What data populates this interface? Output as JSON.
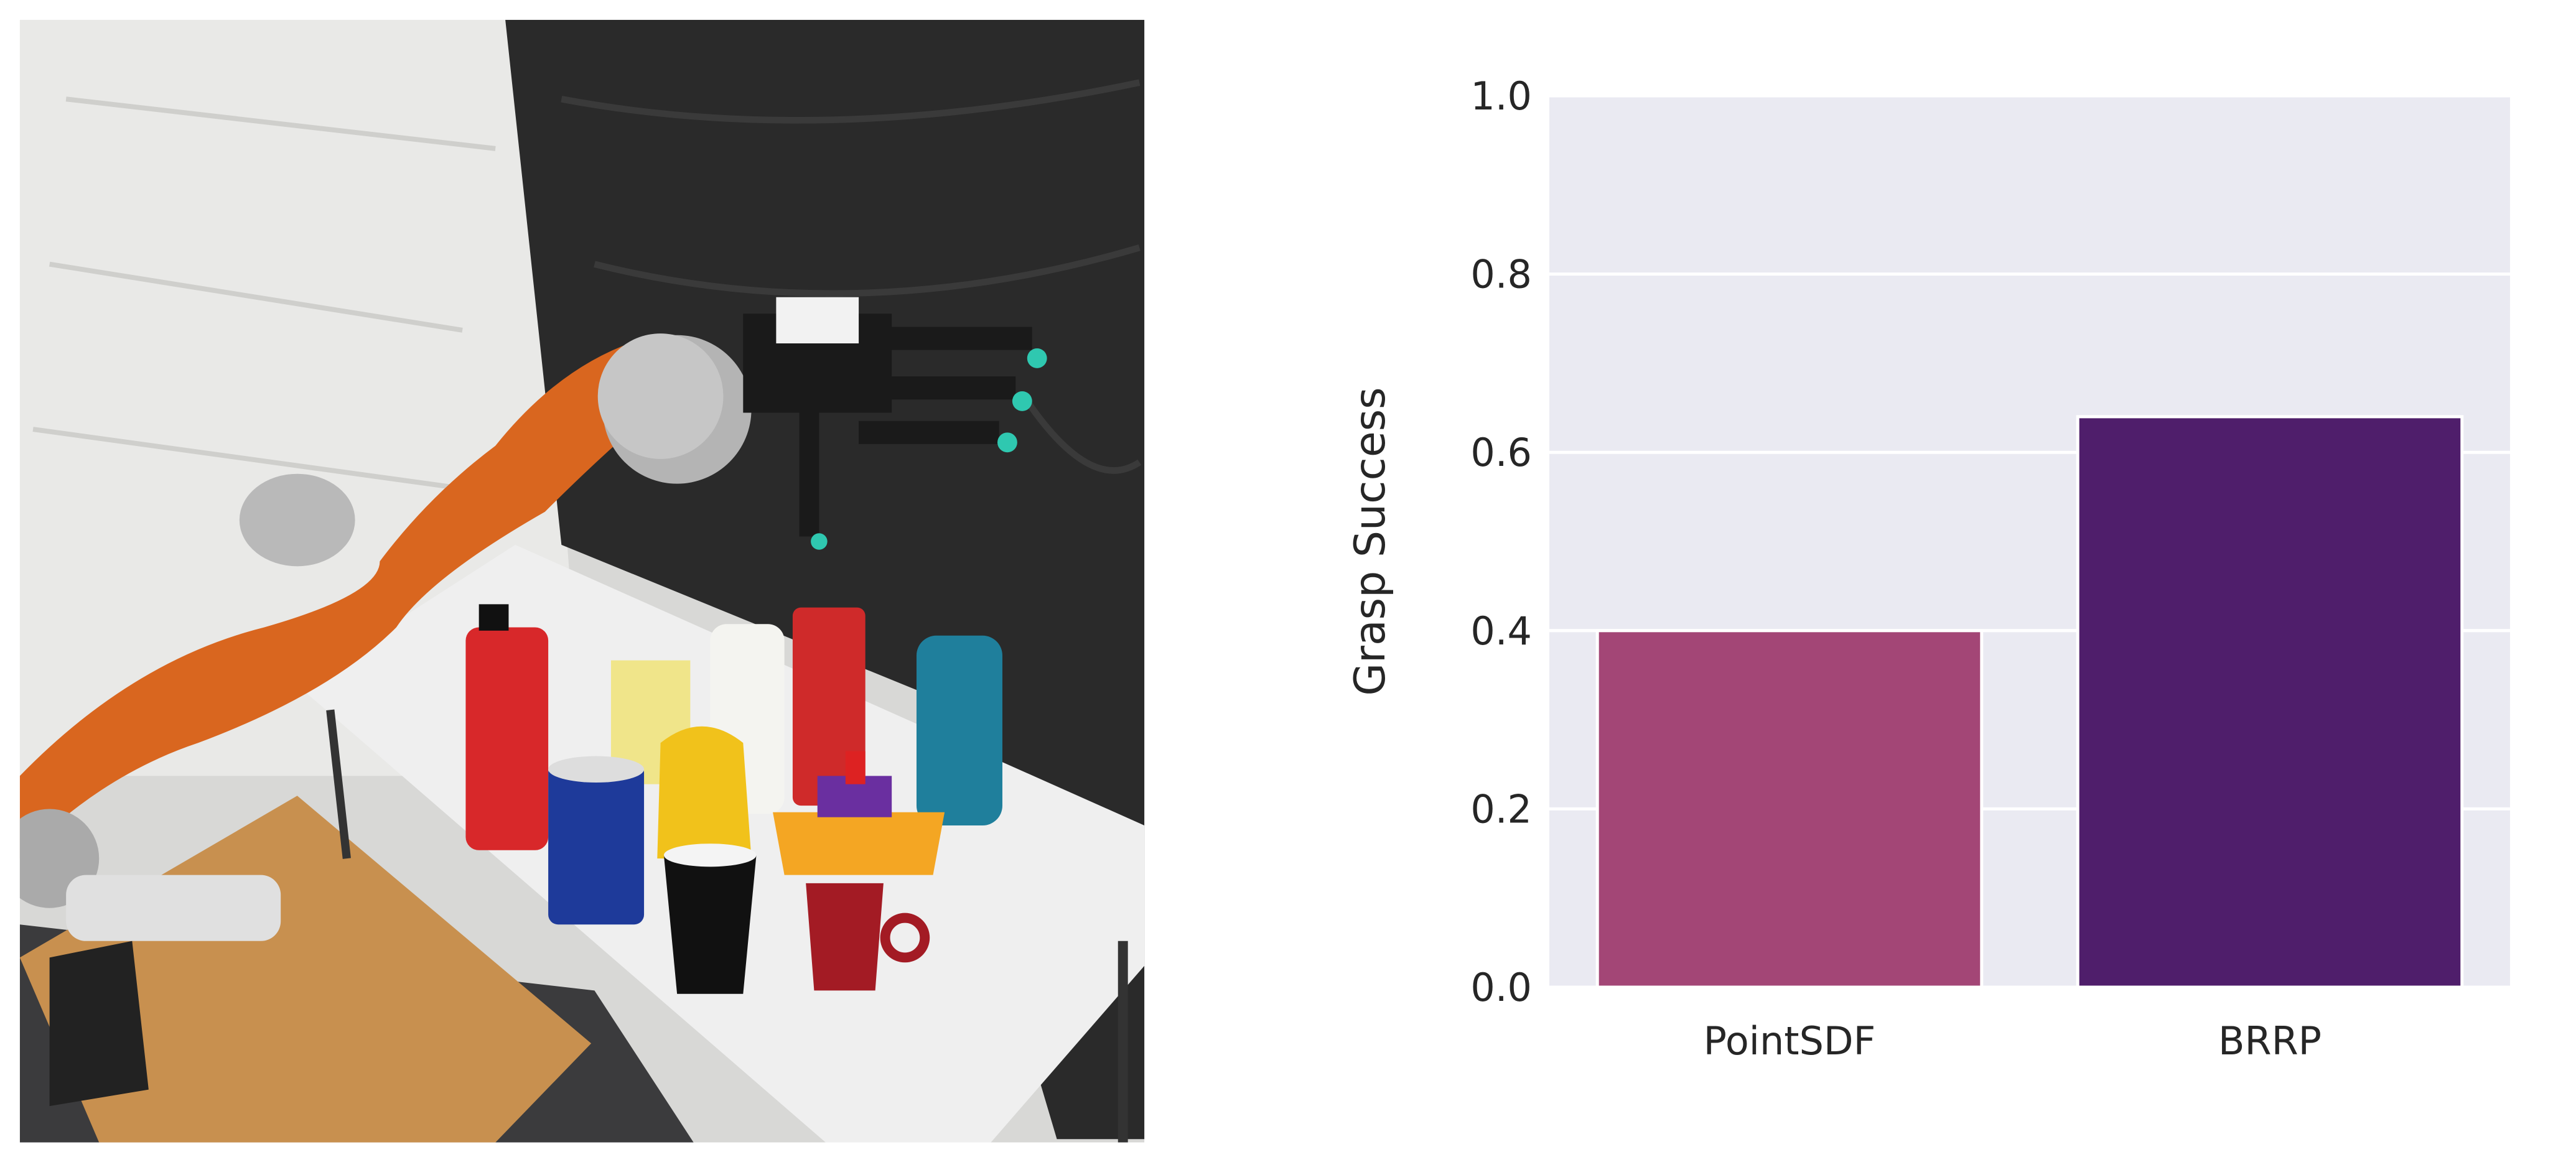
{
  "photo": {
    "subject": "robot-arm-with-hand-and-household-objects-on-table"
  },
  "chart_data": {
    "type": "bar",
    "categories": [
      "PointSDF",
      "BRRP"
    ],
    "values": [
      0.4,
      0.64
    ],
    "title": "",
    "xlabel": "",
    "ylabel": "Grasp Success",
    "ylim": [
      0,
      1.0
    ],
    "yticks": [
      "0.0",
      "0.2",
      "0.4",
      "0.6",
      "0.8",
      "1.0"
    ],
    "grid": true,
    "colors": [
      "#a34676",
      "#4f1e6b"
    ],
    "background": "#eaeaf2"
  }
}
